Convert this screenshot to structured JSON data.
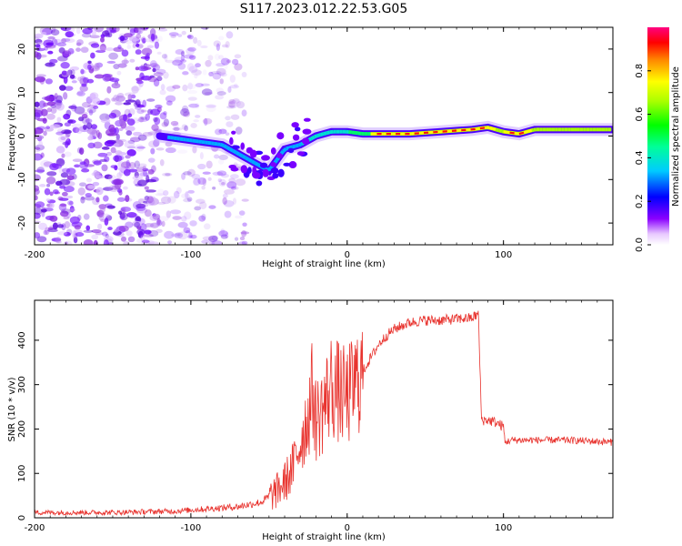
{
  "title": "S117.2023.012.22.53.G05",
  "chart_data": [
    {
      "type": "heatmap",
      "xlabel": "Height of straight line (km)",
      "ylabel": "Frequency (Hz)",
      "xlim": [
        -200,
        170
      ],
      "ylim": [
        -25,
        25
      ],
      "xticks": [
        -200,
        -100,
        0,
        100
      ],
      "yticks": [
        -20,
        -10,
        0,
        10,
        20
      ],
      "colorbar": {
        "label": "Normalized spectral amplitude",
        "range": [
          0,
          1
        ],
        "ticks": [
          "0.0",
          "0.2",
          "0.4",
          "0.6",
          "0.8"
        ]
      },
      "ridge": {
        "x": [
          -120,
          -110,
          -100,
          -90,
          -80,
          -70,
          -60,
          -50,
          -40,
          -30,
          -20,
          -10,
          0,
          10,
          20,
          40,
          60,
          80,
          90,
          100,
          110,
          120,
          140,
          170
        ],
        "y": [
          0,
          -0.5,
          -1,
          -1.5,
          -2,
          -4,
          -6,
          -8,
          -3,
          -2,
          0,
          1,
          1,
          0.5,
          0.5,
          0.5,
          1,
          1.5,
          2,
          1,
          0.5,
          1.5,
          1.5,
          1.5
        ]
      },
      "grid": false
    },
    {
      "type": "line",
      "xlabel": "Height of straight line (km)",
      "ylabel": "SNR (10 * v/v)",
      "xlim": [
        -200,
        170
      ],
      "ylim": [
        0,
        490
      ],
      "xticks": [
        -200,
        -100,
        0,
        100
      ],
      "yticks": [
        0,
        100,
        200,
        300,
        400
      ],
      "series": [
        {
          "color": "#e8332e",
          "x": [
            -200,
            -150,
            -110,
            -90,
            -70,
            -55,
            -45,
            -40,
            -35,
            -30,
            -25,
            -22,
            -20,
            -15,
            -10,
            -5,
            0,
            5,
            10,
            15,
            20,
            25,
            30,
            40,
            50,
            60,
            70,
            80,
            84,
            85,
            86,
            90,
            95,
            100,
            101,
            105,
            120,
            140,
            160,
            170
          ],
          "y": [
            12,
            12,
            15,
            20,
            25,
            35,
            60,
            80,
            110,
            170,
            230,
            290,
            220,
            250,
            300,
            280,
            270,
            300,
            330,
            360,
            390,
            410,
            425,
            440,
            445,
            445,
            448,
            450,
            460,
            330,
            220,
            220,
            215,
            205,
            170,
            175,
            175,
            175,
            172,
            170
          ]
        }
      ],
      "grid": false
    }
  ]
}
